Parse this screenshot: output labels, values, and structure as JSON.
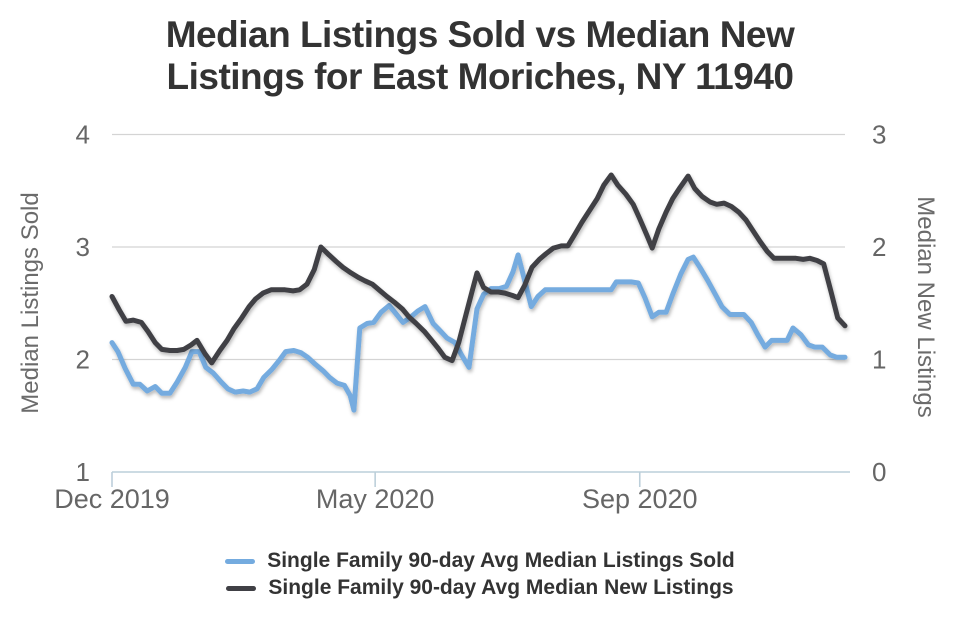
{
  "title": {
    "line1": "Median Listings Sold vs Median New",
    "line2": "Listings for East Moriches, NY 11940"
  },
  "legend": {
    "items": [
      {
        "label": "Single Family 90-day Avg Median Listings Sold",
        "color": "#74abdf"
      },
      {
        "label": "Single Family 90-day Avg Median New Listings",
        "color": "#404045"
      }
    ]
  },
  "colors": {
    "background": "#ffffff",
    "grid": "#d4d4d4",
    "axis": "#bccfda",
    "title": "#333333",
    "tick_label": "#666666",
    "axis_title": "#6b6b6b",
    "legend_text": "#333333",
    "series_sold": "#74abdf",
    "series_new": "#404045"
  },
  "chart_data": {
    "type": "line",
    "title": "Median Listings Sold vs Median New Listings for East Moriches, NY 11940",
    "grid": "horizontal-only",
    "legend_position": "bottom-center",
    "x_axis": {
      "labels": [
        {
          "text": "Dec 2019",
          "t": 0.0
        },
        {
          "text": "May 2020",
          "t": 0.359
        },
        {
          "text": "Sep 2020",
          "t": 0.72
        }
      ]
    },
    "left_axis": {
      "title": "Median Listings Sold",
      "min": 1,
      "max": 4,
      "ticks": [
        4,
        3,
        2,
        1
      ],
      "gridline_values": [
        4,
        3,
        2
      ]
    },
    "right_axis": {
      "title": "Median New Listings",
      "min": 0,
      "max": 3,
      "ticks": [
        3,
        2,
        1,
        0
      ]
    },
    "series": [
      {
        "name": "Single Family 90-day Avg Median Listings Sold",
        "axis": "left",
        "color": "#74abdf",
        "points": [
          [
            0.0,
            2.15
          ],
          [
            0.008,
            2.07
          ],
          [
            0.018,
            1.92
          ],
          [
            0.029,
            1.78
          ],
          [
            0.038,
            1.78
          ],
          [
            0.048,
            1.72
          ],
          [
            0.059,
            1.76
          ],
          [
            0.068,
            1.7
          ],
          [
            0.079,
            1.7
          ],
          [
            0.089,
            1.8
          ],
          [
            0.1,
            1.93
          ],
          [
            0.109,
            2.07
          ],
          [
            0.119,
            2.07
          ],
          [
            0.128,
            1.93
          ],
          [
            0.138,
            1.88
          ],
          [
            0.149,
            1.8
          ],
          [
            0.158,
            1.74
          ],
          [
            0.168,
            1.71
          ],
          [
            0.179,
            1.72
          ],
          [
            0.188,
            1.71
          ],
          [
            0.198,
            1.74
          ],
          [
            0.207,
            1.84
          ],
          [
            0.218,
            1.91
          ],
          [
            0.228,
            1.99
          ],
          [
            0.237,
            2.07
          ],
          [
            0.248,
            2.08
          ],
          [
            0.258,
            2.06
          ],
          [
            0.267,
            2.02
          ],
          [
            0.277,
            1.96
          ],
          [
            0.288,
            1.9
          ],
          [
            0.297,
            1.84
          ],
          [
            0.307,
            1.79
          ],
          [
            0.317,
            1.77
          ],
          [
            0.325,
            1.68
          ],
          [
            0.33,
            1.55
          ],
          [
            0.338,
            2.28
          ],
          [
            0.348,
            2.32
          ],
          [
            0.357,
            2.33
          ],
          [
            0.367,
            2.42
          ],
          [
            0.378,
            2.48
          ],
          [
            0.387,
            2.41
          ],
          [
            0.397,
            2.33
          ],
          [
            0.408,
            2.38
          ],
          [
            0.417,
            2.43
          ],
          [
            0.427,
            2.47
          ],
          [
            0.438,
            2.32
          ],
          [
            0.447,
            2.26
          ],
          [
            0.457,
            2.19
          ],
          [
            0.468,
            2.15
          ],
          [
            0.477,
            2.04
          ],
          [
            0.487,
            1.93
          ],
          [
            0.498,
            2.45
          ],
          [
            0.507,
            2.58
          ],
          [
            0.517,
            2.63
          ],
          [
            0.528,
            2.63
          ],
          [
            0.538,
            2.65
          ],
          [
            0.547,
            2.78
          ],
          [
            0.554,
            2.93
          ],
          [
            0.563,
            2.7
          ],
          [
            0.572,
            2.47
          ],
          [
            0.581,
            2.56
          ],
          [
            0.591,
            2.62
          ],
          [
            0.602,
            2.62
          ],
          [
            0.611,
            2.62
          ],
          [
            0.622,
            2.62
          ],
          [
            0.632,
            2.62
          ],
          [
            0.641,
            2.62
          ],
          [
            0.651,
            2.62
          ],
          [
            0.662,
            2.62
          ],
          [
            0.671,
            2.62
          ],
          [
            0.681,
            2.62
          ],
          [
            0.688,
            2.69
          ],
          [
            0.699,
            2.69
          ],
          [
            0.708,
            2.69
          ],
          [
            0.718,
            2.68
          ],
          [
            0.727,
            2.55
          ],
          [
            0.737,
            2.38
          ],
          [
            0.746,
            2.42
          ],
          [
            0.756,
            2.42
          ],
          [
            0.765,
            2.58
          ],
          [
            0.776,
            2.76
          ],
          [
            0.786,
            2.89
          ],
          [
            0.793,
            2.91
          ],
          [
            0.802,
            2.82
          ],
          [
            0.813,
            2.7
          ],
          [
            0.823,
            2.58
          ],
          [
            0.832,
            2.47
          ],
          [
            0.843,
            2.4
          ],
          [
            0.853,
            2.4
          ],
          [
            0.862,
            2.4
          ],
          [
            0.872,
            2.33
          ],
          [
            0.881,
            2.22
          ],
          [
            0.891,
            2.11
          ],
          [
            0.9,
            2.17
          ],
          [
            0.911,
            2.17
          ],
          [
            0.921,
            2.17
          ],
          [
            0.929,
            2.28
          ],
          [
            0.94,
            2.22
          ],
          [
            0.95,
            2.13
          ],
          [
            0.959,
            2.11
          ],
          [
            0.969,
            2.11
          ],
          [
            0.98,
            2.04
          ],
          [
            0.989,
            2.02
          ],
          [
            1.0,
            2.02
          ]
        ]
      },
      {
        "name": "Single Family 90-day Avg Median New Listings",
        "axis": "right",
        "color": "#404045",
        "points": [
          [
            0.0,
            1.56
          ],
          [
            0.01,
            1.44
          ],
          [
            0.019,
            1.34
          ],
          [
            0.029,
            1.35
          ],
          [
            0.04,
            1.33
          ],
          [
            0.049,
            1.25
          ],
          [
            0.059,
            1.15
          ],
          [
            0.068,
            1.09
          ],
          [
            0.079,
            1.08
          ],
          [
            0.089,
            1.08
          ],
          [
            0.098,
            1.09
          ],
          [
            0.108,
            1.13
          ],
          [
            0.116,
            1.17
          ],
          [
            0.127,
            1.05
          ],
          [
            0.136,
            0.97
          ],
          [
            0.147,
            1.08
          ],
          [
            0.157,
            1.17
          ],
          [
            0.166,
            1.27
          ],
          [
            0.177,
            1.37
          ],
          [
            0.187,
            1.47
          ],
          [
            0.196,
            1.54
          ],
          [
            0.206,
            1.59
          ],
          [
            0.217,
            1.62
          ],
          [
            0.226,
            1.62
          ],
          [
            0.236,
            1.62
          ],
          [
            0.247,
            1.61
          ],
          [
            0.256,
            1.62
          ],
          [
            0.266,
            1.67
          ],
          [
            0.276,
            1.8
          ],
          [
            0.285,
            2.0
          ],
          [
            0.296,
            1.93
          ],
          [
            0.306,
            1.87
          ],
          [
            0.315,
            1.82
          ],
          [
            0.326,
            1.77
          ],
          [
            0.336,
            1.73
          ],
          [
            0.345,
            1.7
          ],
          [
            0.355,
            1.67
          ],
          [
            0.366,
            1.61
          ],
          [
            0.375,
            1.56
          ],
          [
            0.385,
            1.51
          ],
          [
            0.396,
            1.45
          ],
          [
            0.405,
            1.38
          ],
          [
            0.415,
            1.32
          ],
          [
            0.426,
            1.25
          ],
          [
            0.435,
            1.18
          ],
          [
            0.445,
            1.1
          ],
          [
            0.454,
            1.02
          ],
          [
            0.464,
            0.99
          ],
          [
            0.473,
            1.15
          ],
          [
            0.483,
            1.4
          ],
          [
            0.491,
            1.6
          ],
          [
            0.498,
            1.77
          ],
          [
            0.507,
            1.64
          ],
          [
            0.517,
            1.6
          ],
          [
            0.527,
            1.6
          ],
          [
            0.536,
            1.59
          ],
          [
            0.546,
            1.57
          ],
          [
            0.554,
            1.55
          ],
          [
            0.563,
            1.66
          ],
          [
            0.573,
            1.82
          ],
          [
            0.583,
            1.89
          ],
          [
            0.592,
            1.94
          ],
          [
            0.602,
            1.99
          ],
          [
            0.613,
            2.01
          ],
          [
            0.622,
            2.01
          ],
          [
            0.632,
            2.12
          ],
          [
            0.641,
            2.22
          ],
          [
            0.651,
            2.32
          ],
          [
            0.662,
            2.43
          ],
          [
            0.671,
            2.55
          ],
          [
            0.681,
            2.64
          ],
          [
            0.69,
            2.55
          ],
          [
            0.701,
            2.47
          ],
          [
            0.711,
            2.38
          ],
          [
            0.72,
            2.25
          ],
          [
            0.73,
            2.1
          ],
          [
            0.737,
            1.99
          ],
          [
            0.746,
            2.16
          ],
          [
            0.756,
            2.31
          ],
          [
            0.765,
            2.43
          ],
          [
            0.775,
            2.53
          ],
          [
            0.786,
            2.63
          ],
          [
            0.795,
            2.52
          ],
          [
            0.805,
            2.45
          ],
          [
            0.816,
            2.4
          ],
          [
            0.825,
            2.38
          ],
          [
            0.835,
            2.39
          ],
          [
            0.845,
            2.36
          ],
          [
            0.855,
            2.31
          ],
          [
            0.865,
            2.24
          ],
          [
            0.874,
            2.15
          ],
          [
            0.884,
            2.05
          ],
          [
            0.894,
            1.96
          ],
          [
            0.903,
            1.9
          ],
          [
            0.913,
            1.9
          ],
          [
            0.922,
            1.9
          ],
          [
            0.933,
            1.9
          ],
          [
            0.943,
            1.89
          ],
          [
            0.952,
            1.9
          ],
          [
            0.962,
            1.88
          ],
          [
            0.971,
            1.85
          ],
          [
            0.981,
            1.6
          ],
          [
            0.99,
            1.37
          ],
          [
            1.0,
            1.3
          ]
        ]
      }
    ]
  }
}
